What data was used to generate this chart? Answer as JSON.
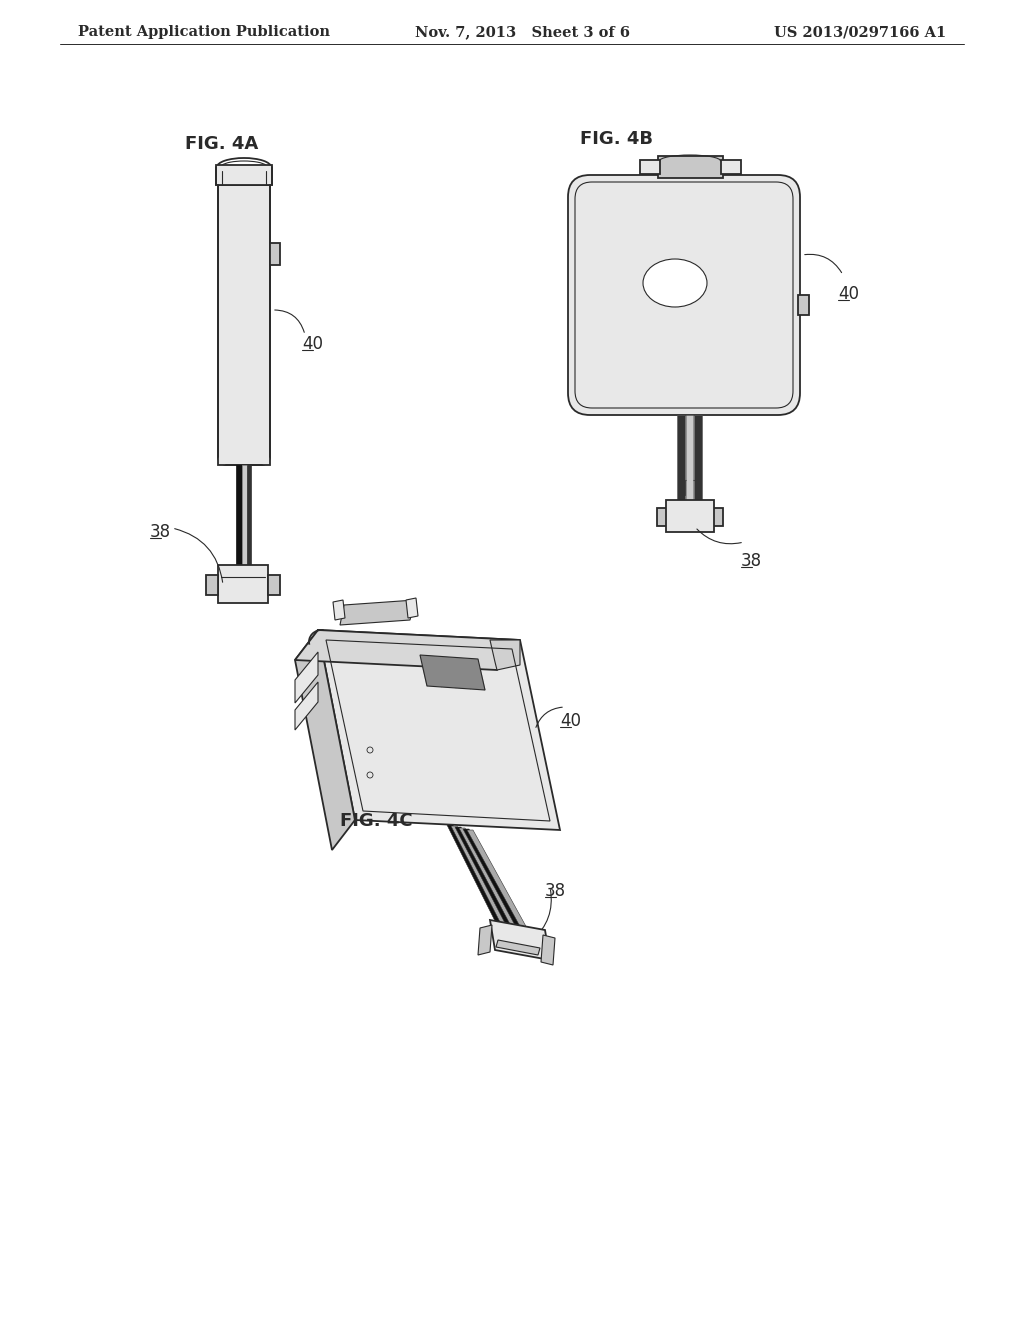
{
  "bg_color": "#ffffff",
  "line_color": "#2a2a2a",
  "header_left": "Patent Application Publication",
  "header_mid": "Nov. 7, 2013   Sheet 3 of 6",
  "header_right": "US 2013/0297166 A1",
  "fig4a_label": "FIG. 4A",
  "fig4b_label": "FIG. 4B",
  "fig4c_label": "FIG. 4C",
  "ref40": "40",
  "ref38": "38",
  "gray_light": "#e8e8e8",
  "gray_mid": "#c8c8c8",
  "gray_dark": "#888888",
  "gray_wire": "#444444"
}
